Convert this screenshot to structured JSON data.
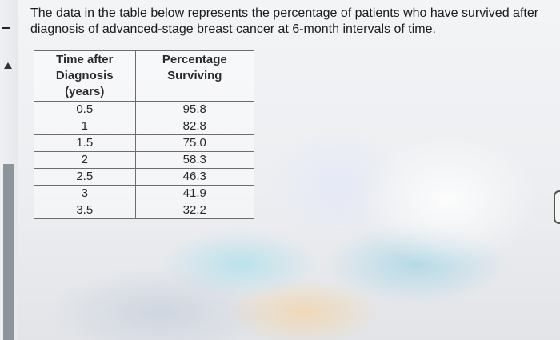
{
  "question_text": "The data in the table below represents the percentage of patients who have survived after diagnosis of advanced-stage breast cancer at 6-month intervals of time.",
  "table": {
    "headers": {
      "time": [
        "Time after",
        "Diagnosis",
        "(years)"
      ],
      "percentage": [
        "Percentage",
        "Surviving"
      ]
    },
    "rows": [
      {
        "time": "0.5",
        "percent": "95.8"
      },
      {
        "time": "1",
        "percent": "82.8"
      },
      {
        "time": "1.5",
        "percent": "75.0"
      },
      {
        "time": "2",
        "percent": "58.3"
      },
      {
        "time": "2.5",
        "percent": "46.3"
      },
      {
        "time": "3",
        "percent": "41.9"
      },
      {
        "time": "3.5",
        "percent": "32.2"
      }
    ]
  },
  "icons": {
    "collapse": "dash-icon",
    "scroll_up": "arrow-up-icon",
    "side_handle": "drag-handle-icon"
  }
}
